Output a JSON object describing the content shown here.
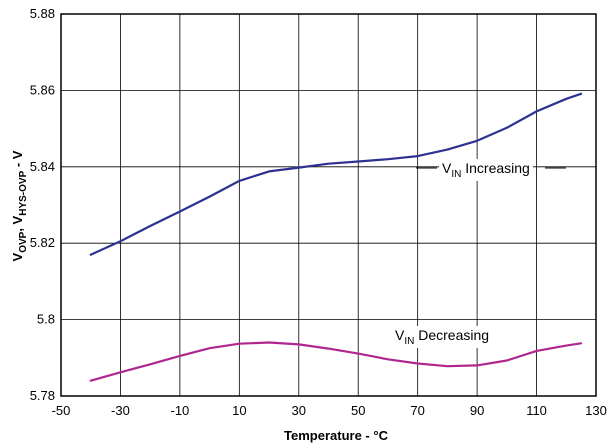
{
  "chart_data": {
    "type": "line",
    "title": "",
    "xlabel": "Temperature - °C",
    "ylabel": {
      "parts": [
        "V",
        "OVP",
        ", V",
        "HYS-OVP",
        " - V"
      ]
    },
    "xlim": [
      -50,
      130
    ],
    "ylim": [
      5.78,
      5.88
    ],
    "xticks": [
      "-50",
      "-30",
      "-10",
      "10",
      "30",
      "50",
      "70",
      "90",
      "110",
      "130"
    ],
    "yticks": [
      "5.78",
      "5.8",
      "5.82",
      "5.84",
      "5.86",
      "5.88"
    ],
    "grid": true,
    "series": [
      {
        "name_parts": [
          "V",
          "IN",
          " Increasing"
        ],
        "color": "#2E3192",
        "x": [
          -40,
          -30,
          -20,
          -10,
          0,
          10,
          20,
          30,
          40,
          50,
          60,
          70,
          80,
          90,
          100,
          110,
          120,
          125
        ],
        "y": [
          5.817,
          5.8205,
          5.8245,
          5.8283,
          5.8322,
          5.8363,
          5.8388,
          5.8398,
          5.8408,
          5.8414,
          5.842,
          5.8428,
          5.8445,
          5.8468,
          5.8502,
          5.8545,
          5.8578,
          5.8591
        ]
      },
      {
        "name_parts": [
          "V",
          "IN",
          " Decreasing"
        ],
        "color": "#B0268F",
        "x": [
          -40,
          -30,
          -20,
          -10,
          0,
          10,
          20,
          30,
          40,
          50,
          60,
          70,
          80,
          90,
          100,
          110,
          120,
          125
        ],
        "y": [
          5.784,
          5.7862,
          5.7883,
          5.7905,
          5.7925,
          5.7937,
          5.794,
          5.7935,
          5.7924,
          5.7911,
          5.7896,
          5.7885,
          5.7878,
          5.788,
          5.7893,
          5.7918,
          5.7932,
          5.7938
        ]
      }
    ]
  }
}
